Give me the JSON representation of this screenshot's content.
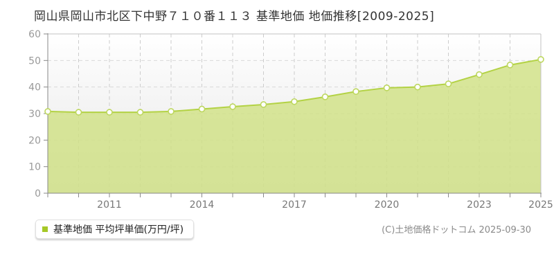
{
  "title": "岡山県岡山市北区下中野７１０番１１３ 基準地価 地価推移[2009-2025]",
  "legend": {
    "label": "基準地価 平均坪単価(万円/坪)",
    "marker_color": "#a6c827"
  },
  "copyright": "(C)土地価格ドットコム 2025-09-30",
  "chart_data": {
    "type": "area",
    "title": "岡山県岡山市北区下中野７１０番１１３ 基準地価 地価推移[2009-2025]",
    "x": [
      2009,
      2010,
      2011,
      2012,
      2013,
      2014,
      2015,
      2016,
      2017,
      2018,
      2019,
      2020,
      2021,
      2022,
      2023,
      2024,
      2025
    ],
    "series": [
      {
        "name": "基準地価 平均坪単価(万円/坪)",
        "values": [
          30.8,
          30.5,
          30.5,
          30.5,
          30.8,
          31.7,
          32.6,
          33.4,
          34.5,
          36.3,
          38.3,
          39.7,
          40.0,
          41.2,
          44.7,
          48.3,
          50.4
        ]
      }
    ],
    "xlabel": "",
    "ylabel": "平均坪単価(万円/坪)",
    "ylim": [
      0,
      60
    ],
    "yticks": [
      0,
      10,
      20,
      30,
      40,
      50,
      60
    ],
    "xtick_labels": [
      2011,
      2014,
      2017,
      2020,
      2023,
      2025
    ],
    "grid": true,
    "legend_position": "bottom-left",
    "colors": {
      "area": "#cfe182",
      "area_opacity": 0.8,
      "line": "#b3d244",
      "marker_stroke": "#bdd75e",
      "marker_fill": "#ffffff",
      "grid_h": "#d9d9d9",
      "grid_v": "#cccccc",
      "axis": "#888888",
      "frame": "#c2c2c2",
      "plot_bg_top": "#ffffff",
      "plot_bg_bottom": "#e6e6e6"
    }
  }
}
